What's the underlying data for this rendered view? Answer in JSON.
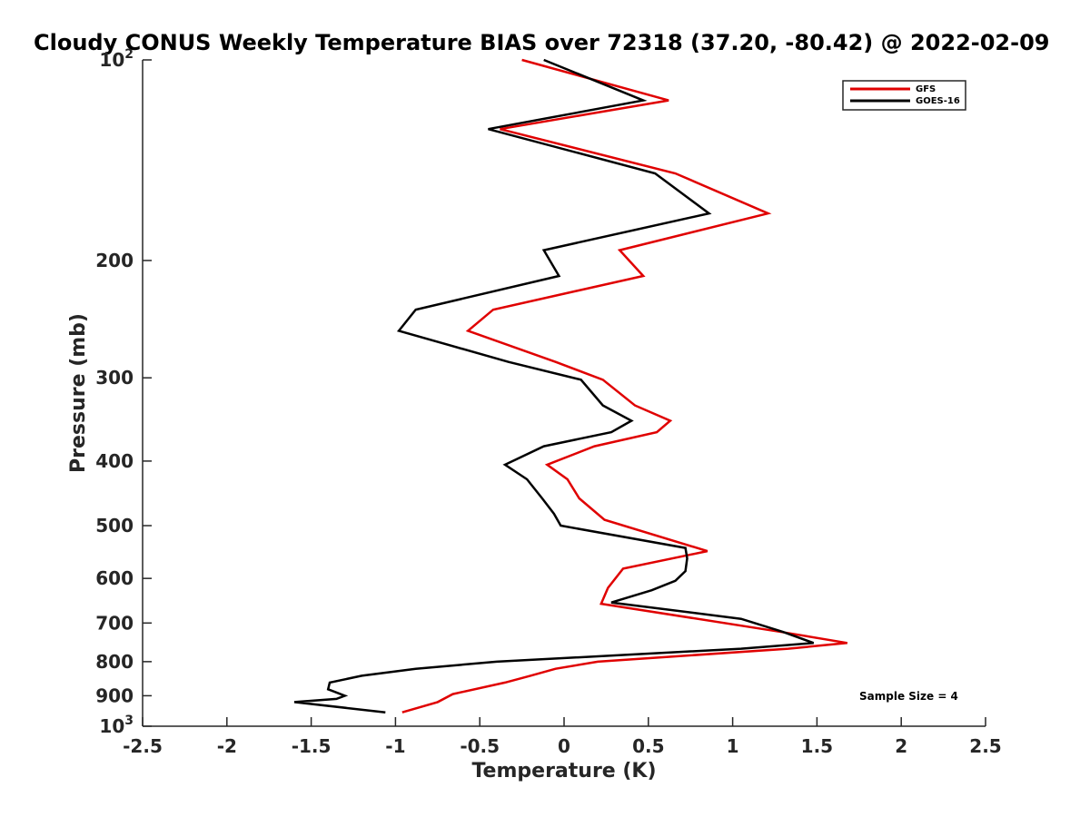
{
  "chart_data": {
    "type": "line",
    "title": "Cloudy CONUS Weekly Temperature BIAS over 72318 (37.20, -80.42) @ 2022-02-09",
    "xlabel": "Temperature (K)",
    "ylabel": "Pressure (mb)",
    "xlim": [
      -2.5,
      2.5
    ],
    "ylim": [
      100,
      1000
    ],
    "yscale": "log",
    "y_reversed": true,
    "xticks": [
      "-2.5",
      "-2",
      "-1.5",
      "-1",
      "-0.5",
      "0",
      "0.5",
      "1",
      "1.5",
      "2",
      "2.5"
    ],
    "xtick_values": [
      -2.5,
      -2,
      -1.5,
      -1,
      -0.5,
      0,
      0.5,
      1,
      1.5,
      2,
      2.5
    ],
    "yticks": [
      {
        "value": 100,
        "base": "10",
        "exp": "2"
      },
      {
        "value": 200,
        "label": "200"
      },
      {
        "value": 300,
        "label": "300"
      },
      {
        "value": 400,
        "label": "400"
      },
      {
        "value": 500,
        "label": "500"
      },
      {
        "value": 600,
        "label": "600"
      },
      {
        "value": 700,
        "label": "700"
      },
      {
        "value": 800,
        "label": "800"
      },
      {
        "value": 900,
        "label": "900"
      },
      {
        "value": 1000,
        "base": "10",
        "exp": "3"
      }
    ],
    "legend_position": "top-right",
    "annotation": "Sample Size = 4",
    "series": [
      {
        "name": "GFS",
        "color": "#e00000",
        "x": [
          -0.25,
          0.62,
          -0.38,
          0.66,
          1.21,
          0.33,
          0.47,
          -0.42,
          -0.57,
          -0.05,
          0.23,
          0.42,
          0.63,
          0.55,
          0.18,
          -0.1,
          0.02,
          0.09,
          0.24,
          0.85,
          0.35,
          0.26,
          0.22,
          1.29,
          1.68,
          1.33,
          0.2,
          -0.05,
          -0.2,
          -0.35,
          -0.66,
          -0.75,
          -0.96
        ],
        "y": [
          100,
          115,
          127,
          148,
          170,
          193,
          211,
          237,
          255,
          284,
          302,
          330,
          348,
          362,
          380,
          405,
          426,
          455,
          490,
          546,
          580,
          620,
          655,
          722,
          750,
          765,
          800,
          820,
          840,
          860,
          895,
          920,
          953
        ]
      },
      {
        "name": "GOES-16",
        "color": "#000000",
        "x": [
          -0.12,
          0.47,
          -0.45,
          0.54,
          0.86,
          -0.12,
          -0.03,
          -0.88,
          -0.98,
          -0.33,
          0.1,
          0.23,
          0.4,
          0.28,
          -0.12,
          -0.35,
          -0.22,
          -0.13,
          -0.06,
          -0.02,
          0.72,
          0.73,
          0.72,
          0.66,
          0.52,
          0.28,
          1.05,
          1.3,
          1.48,
          1.05,
          -0.4,
          -0.88,
          -1.2,
          -1.39,
          -1.4,
          -1.3,
          -1.35,
          -1.6,
          -1.06
        ],
        "y": [
          100,
          115,
          127,
          148,
          170,
          193,
          211,
          237,
          255,
          284,
          302,
          330,
          348,
          362,
          380,
          405,
          426,
          455,
          480,
          500,
          540,
          560,
          585,
          605,
          625,
          652,
          690,
          722,
          750,
          765,
          800,
          820,
          840,
          860,
          880,
          900,
          910,
          920,
          953
        ]
      }
    ]
  }
}
